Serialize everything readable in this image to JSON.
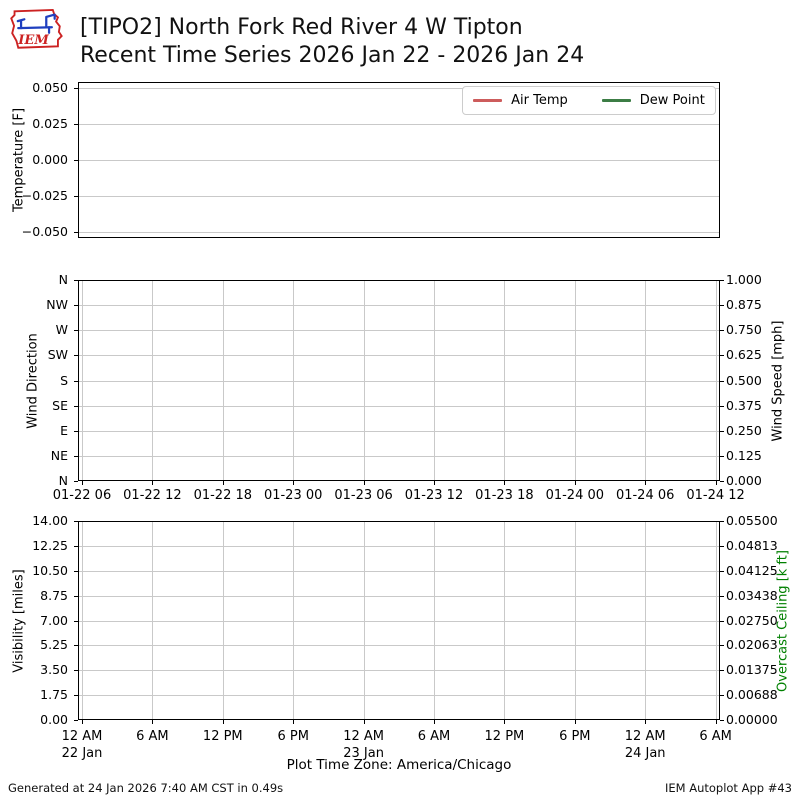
{
  "header": {
    "title_line1": "[TIPO2] North Fork Red River 4 W Tipton",
    "title_line2": "Recent Time Series 2026 Jan 22 - 2026 Jan 24",
    "logo_text": "IEM"
  },
  "xaxis_note": "Plot Time Zone: America/Chicago",
  "footer": {
    "generated": "Generated at 24 Jan 2026 7:40 AM CST in 0.49s",
    "app_label": "IEM Autoplot App #43"
  },
  "colors": {
    "air_temp": "#cd5c5c",
    "dew_point": "#3c7d45",
    "overcast_label": "#008000",
    "grid": "#c9c9c9",
    "logo_red": "#cc2222",
    "logo_blue": "#1f3fbf"
  },
  "chart_data": [
    {
      "type": "line",
      "panel": "temperature",
      "ylabel_left": "Temperature [F]",
      "yticks_left": [
        "0.050",
        "0.025",
        "0.000",
        "−0.025",
        "−0.050"
      ],
      "ylim_left": [
        -0.05,
        0.05
      ],
      "grid": "horizontal",
      "legend": {
        "position": "upper right",
        "entries": [
          {
            "label": "Air Temp",
            "color": "#cd5c5c"
          },
          {
            "label": "Dew Point",
            "color": "#3c7d45"
          }
        ]
      },
      "series": [
        {
          "name": "Air Temp",
          "color": "#cd5c5c",
          "x": [],
          "values": []
        },
        {
          "name": "Dew Point",
          "color": "#3c7d45",
          "x": [],
          "values": []
        }
      ]
    },
    {
      "type": "line",
      "panel": "wind",
      "ylabel_left": "Wind Direction",
      "yticks_left": [
        "N",
        "NW",
        "W",
        "SW",
        "S",
        "SE",
        "E",
        "NE",
        "N"
      ],
      "ylabel_right": "Wind Speed [mph]",
      "yticks_right": [
        "1.000",
        "0.875",
        "0.750",
        "0.625",
        "0.500",
        "0.375",
        "0.250",
        "0.125",
        "0.000"
      ],
      "ylim_right": [
        0,
        1
      ],
      "grid": "both",
      "xticks": [
        "01-22 06",
        "01-22 12",
        "01-22 18",
        "01-23 00",
        "01-23 06",
        "01-23 12",
        "01-23 18",
        "01-24 00",
        "01-24 06",
        "01-24 12"
      ],
      "series": [
        {
          "name": "Wind Direction",
          "x": [],
          "values": []
        },
        {
          "name": "Wind Speed",
          "x": [],
          "values": []
        }
      ]
    },
    {
      "type": "line",
      "panel": "visibility-ceiling",
      "ylabel_left": "Visibility [miles]",
      "yticks_left": [
        "14.00",
        "12.25",
        "10.50",
        "8.75",
        "7.00",
        "5.25",
        "3.50",
        "1.75",
        "0.00"
      ],
      "ylim_left": [
        0,
        14
      ],
      "ylabel_right": "Overcast Ceiling [k ft]",
      "ylabel_right_color": "#008000",
      "yticks_right": [
        "0.05500",
        "0.04813",
        "0.04125",
        "0.03438",
        "0.02750",
        "0.02063",
        "0.01375",
        "0.00688",
        "0.00000"
      ],
      "ylim_right": [
        0,
        0.055
      ],
      "grid": "both",
      "xticks": [
        [
          "12 AM",
          "22 Jan"
        ],
        [
          "6 AM",
          ""
        ],
        [
          "12 PM",
          ""
        ],
        [
          "6 PM",
          ""
        ],
        [
          "12 AM",
          "23 Jan"
        ],
        [
          "6 AM",
          ""
        ],
        [
          "12 PM",
          ""
        ],
        [
          "6 PM",
          ""
        ],
        [
          "12 AM",
          "24 Jan"
        ],
        [
          "6 AM",
          ""
        ]
      ],
      "series": [
        {
          "name": "Visibility",
          "x": [],
          "values": []
        },
        {
          "name": "Overcast Ceiling",
          "x": [],
          "values": []
        }
      ]
    }
  ]
}
